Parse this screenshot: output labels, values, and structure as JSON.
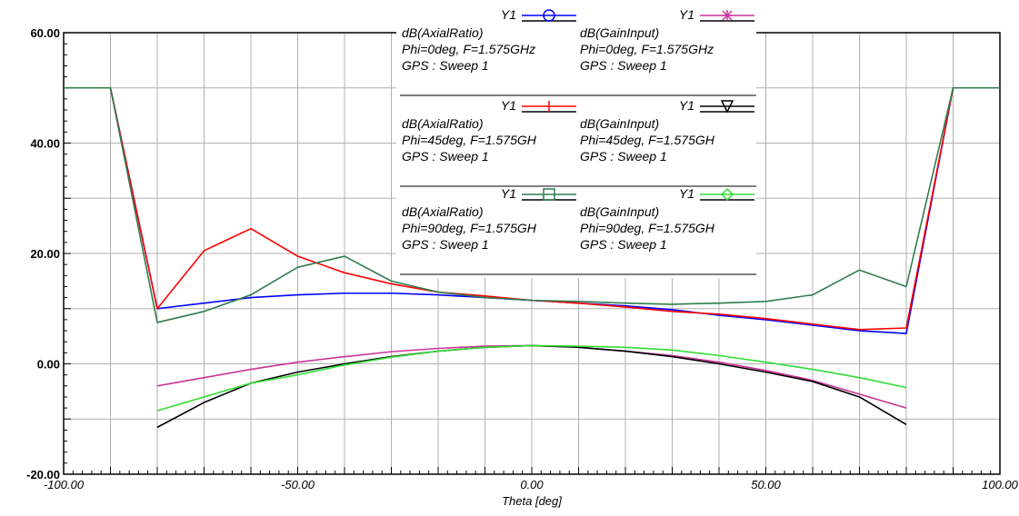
{
  "chart_data": {
    "type": "line",
    "xlabel": "Theta [deg]",
    "ylabel": "",
    "xlim": [
      -100,
      100
    ],
    "ylim": [
      -20,
      60
    ],
    "grid": true,
    "x_ticks": [
      -100,
      -50,
      0,
      50,
      100
    ],
    "x_tick_labels": [
      "-100.00",
      "-50.00",
      "0.00",
      "50.00",
      "100.00"
    ],
    "y_ticks": [
      -20,
      0,
      20,
      40,
      60
    ],
    "y_tick_labels": [
      "-20.00",
      "0.00",
      "20.00",
      "40.00",
      "60.00"
    ],
    "legend_position": "top-center",
    "series": [
      {
        "name": "dB(AxialRatio)",
        "legend_lines": [
          "Y1",
          "dB(AxialRatio)",
          "Phi=0deg, F=1.575GHz",
          "GPS : Sweep 1"
        ],
        "color": "#0000ff",
        "marker": "circle",
        "x": [
          -100,
          -90,
          -80,
          -70,
          -60,
          -50,
          -40,
          -30,
          -20,
          -10,
          0,
          10,
          20,
          30,
          40,
          50,
          60,
          70,
          80,
          90,
          100
        ],
        "values": [
          50,
          50,
          10,
          11,
          12,
          12.5,
          12.8,
          12.8,
          12.5,
          12,
          11.5,
          11,
          10.5,
          9.8,
          8.8,
          8,
          7,
          6,
          5.5,
          50,
          50
        ]
      },
      {
        "name": "dB(GainInput)",
        "legend_lines": [
          "Y1",
          "dB(GainInput)",
          "Phi=0deg, F=1.575GHz",
          "GPS : Sweep 1"
        ],
        "color": "#cc3399",
        "marker": "asterisk",
        "x": [
          -80,
          -70,
          -60,
          -50,
          -40,
          -30,
          -20,
          -10,
          0,
          10,
          20,
          30,
          40,
          50,
          60,
          70,
          80
        ],
        "values": [
          -4,
          -2.5,
          -1,
          0.3,
          1.3,
          2.2,
          2.8,
          3.2,
          3.3,
          3,
          2.3,
          1.5,
          0.3,
          -1.2,
          -3,
          -5.5,
          -8
        ]
      },
      {
        "name": "dB(AxialRatio)",
        "legend_lines": [
          "Y1",
          "dB(AxialRatio)",
          "Phi=45deg, F=1.575GH",
          "GPS : Sweep 1"
        ],
        "color": "#ff0000",
        "marker": "plus",
        "x": [
          -100,
          -90,
          -80,
          -70,
          -60,
          -50,
          -40,
          -30,
          -20,
          -10,
          0,
          10,
          20,
          30,
          40,
          50,
          60,
          70,
          80,
          90,
          100
        ],
        "values": [
          50,
          50,
          10,
          20.5,
          24.5,
          19.5,
          16.5,
          14.5,
          13,
          12.3,
          11.5,
          11,
          10.3,
          9.5,
          9,
          8.2,
          7.2,
          6.2,
          6.5,
          50,
          50
        ]
      },
      {
        "name": "dB(GainInput)",
        "legend_lines": [
          "Y1",
          "dB(GainInput)",
          "Phi=45deg, F=1.575GH",
          "GPS : Sweep 1"
        ],
        "color": "#000000",
        "marker": "triangle-down",
        "x": [
          -80,
          -70,
          -60,
          -50,
          -40,
          -30,
          -20,
          -10,
          0,
          10,
          20,
          30,
          40,
          50,
          60,
          70,
          80
        ],
        "values": [
          -11.5,
          -7,
          -3.5,
          -1.5,
          0,
          1.3,
          2.3,
          3,
          3.3,
          3,
          2.3,
          1.3,
          0,
          -1.5,
          -3.2,
          -6,
          -11
        ]
      },
      {
        "name": "dB(AxialRatio)",
        "legend_lines": [
          "Y1",
          "dB(AxialRatio)",
          "Phi=90deg, F=1.575GH",
          "GPS : Sweep 1"
        ],
        "color": "#2e7d4f",
        "marker": "square",
        "x": [
          -100,
          -90,
          -80,
          -70,
          -60,
          -50,
          -40,
          -30,
          -20,
          -10,
          0,
          10,
          20,
          30,
          40,
          50,
          60,
          70,
          80,
          90,
          100
        ],
        "values": [
          50,
          50,
          7.5,
          9.5,
          12.5,
          17.5,
          19.5,
          15,
          13,
          12,
          11.5,
          11.3,
          11,
          10.8,
          11,
          11.3,
          12.5,
          17,
          14,
          50,
          50
        ]
      },
      {
        "name": "dB(GainInput)",
        "legend_lines": [
          "Y1",
          "dB(GainInput)",
          "Phi=90deg, F=1.575GH",
          "GPS : Sweep 1"
        ],
        "color": "#33dd33",
        "marker": "diamond",
        "x": [
          -80,
          -70,
          -60,
          -50,
          -40,
          -30,
          -20,
          -10,
          0,
          10,
          20,
          30,
          40,
          50,
          60,
          70,
          80
        ],
        "values": [
          -8.5,
          -6,
          -3.5,
          -2,
          -0.2,
          1.2,
          2.3,
          3,
          3.3,
          3.2,
          3,
          2.5,
          1.5,
          0.3,
          -1,
          -2.5,
          -4.3
        ]
      }
    ]
  }
}
